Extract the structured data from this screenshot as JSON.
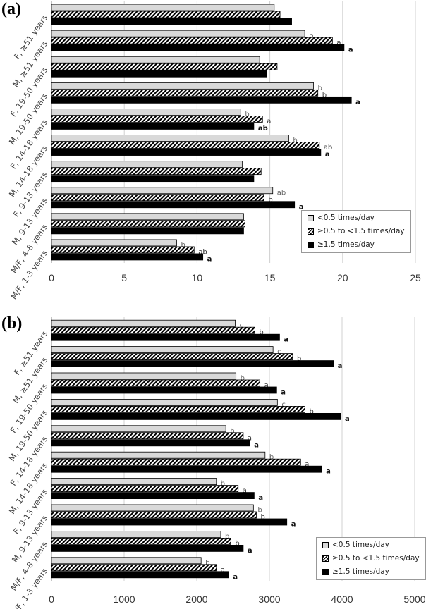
{
  "legend": {
    "low": "<0.5 times/day",
    "mid": "≥0.5 to <1.5 times/day",
    "high": "≥1.5 times/day"
  },
  "chart_data": [
    {
      "panel_label": "(a)",
      "type": "bar",
      "orientation": "horizontal",
      "categories": [
        "F, ≥51 years",
        "M, ≥51 years",
        "F, 19-50 years",
        "M, 19-50 years",
        "F, 14-18 years",
        "M, 14-18 years",
        "F, 9-13 years",
        "M, 9-13 years",
        "M/F, 4-8 years",
        "M/F, 1-3 years"
      ],
      "xlim": [
        0,
        25
      ],
      "xticks": [
        0,
        5,
        10,
        15,
        20,
        25
      ],
      "grid": true,
      "legend_position": "bottom-right",
      "series": [
        {
          "name": "<0.5 times/day",
          "values": [
            15.3,
            17.4,
            14.3,
            18.0,
            13.0,
            16.3,
            13.1,
            15.2,
            13.2,
            8.6
          ],
          "labels": [
            "",
            "b",
            "",
            "b",
            "b",
            "b",
            "",
            "ab",
            "",
            "b"
          ]
        },
        {
          "name": "≥0.5 to <1.5 times/day",
          "values": [
            15.7,
            19.3,
            15.5,
            18.3,
            14.5,
            18.4,
            14.4,
            14.6,
            13.3,
            9.8
          ],
          "labels": [
            "",
            "a",
            "",
            "b",
            "a",
            "ab",
            "",
            "b",
            "",
            "ab"
          ]
        },
        {
          "name": "≥1.5 times/day",
          "values": [
            16.5,
            20.1,
            14.8,
            20.6,
            13.9,
            18.5,
            13.9,
            16.7,
            13.2,
            10.4
          ],
          "labels": [
            "",
            "a",
            "",
            "a",
            "ab",
            "a",
            "",
            "a",
            "",
            "a"
          ]
        }
      ]
    },
    {
      "panel_label": "(b)",
      "type": "bar",
      "orientation": "horizontal",
      "categories": [
        "F, ≥51 years",
        "M, ≥51 years",
        "F, 19-50 years",
        "M, 19-50 years",
        "F, 14-18 years",
        "M, 14-18 years",
        "F, 9-13 years",
        "M, 9-13 years",
        "M/F, 4-8 years",
        "M/F, 1-3 years"
      ],
      "xlim": [
        0,
        5000
      ],
      "xticks": [
        0,
        1000,
        2000,
        3000,
        4000,
        5000
      ],
      "grid": true,
      "legend_position": "bottom-right",
      "series": [
        {
          "name": "<0.5 times/day",
          "values": [
            2530,
            3050,
            2540,
            3110,
            2400,
            2940,
            2270,
            2780,
            2330,
            2060
          ],
          "labels": [
            "c",
            "c",
            "b",
            "c",
            "b",
            "b",
            "b",
            "b",
            "b",
            "b"
          ]
        },
        {
          "name": "≥0.5 to <1.5 times/day",
          "values": [
            2800,
            3320,
            2870,
            3490,
            2640,
            3430,
            2570,
            2820,
            2470,
            2270
          ],
          "labels": [
            "b",
            "b",
            "a",
            "b",
            "a",
            "a",
            "a",
            "b",
            "b",
            "a"
          ]
        },
        {
          "name": "≥1.5 times/day",
          "values": [
            3140,
            3880,
            3100,
            3980,
            2730,
            3720,
            2790,
            3240,
            2640,
            2440
          ],
          "labels": [
            "a",
            "a",
            "a",
            "a",
            "a",
            "a",
            "a",
            "a",
            "a",
            "a"
          ]
        }
      ]
    }
  ]
}
